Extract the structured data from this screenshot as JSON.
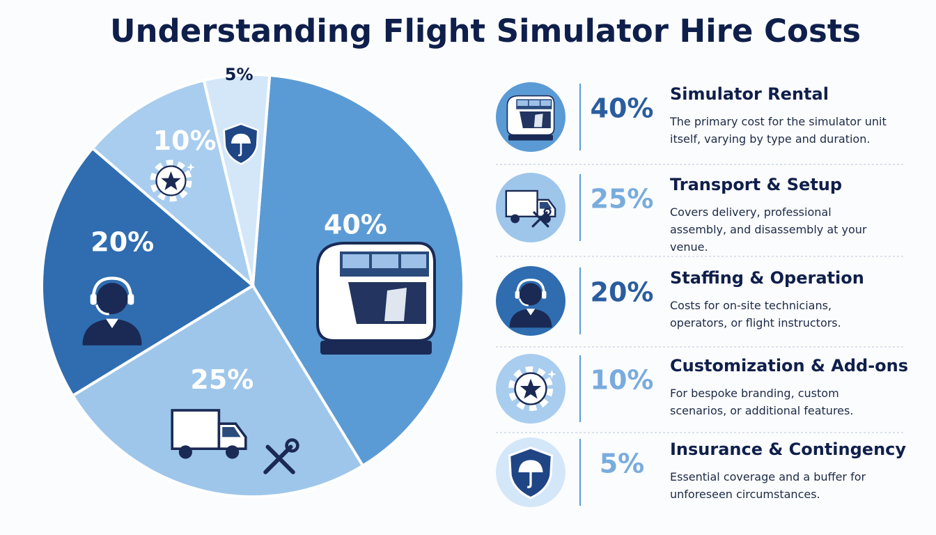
{
  "chart_data": {
    "type": "pie",
    "title": "Understanding Flight Simulator Hire Costs",
    "categories": [
      "Simulator Rental",
      "Transport & Setup",
      "Staffing & Operation",
      "Customization & Add-ons",
      "Insurance & Contingency"
    ],
    "values": [
      40,
      25,
      20,
      10,
      5
    ],
    "value_labels": [
      "40%",
      "25%",
      "20%",
      "10%",
      "5%"
    ],
    "colors": [
      "#5b9bd5",
      "#9ec6ea",
      "#2f6db0",
      "#a8cdee",
      "#d4e7f8"
    ],
    "descriptions": [
      "The primary cost for the simulator unit itself, varying by type and duration.",
      "Covers delivery, professional assembly, and disassembly at your venue.",
      "Costs for on-site technicians, operators, or flight instructors.",
      "For bespoke branding, custom scenarios, or additional features.",
      "Essential coverage and a buffer for unforeseen circumstances."
    ]
  }
}
